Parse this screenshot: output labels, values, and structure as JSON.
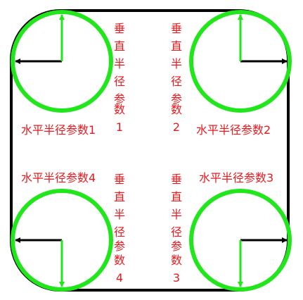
{
  "colors": {
    "border": "#000000",
    "circle": "#22e61c",
    "arrow_horizontal": "#000000",
    "arrow_vertical": "#22e61c",
    "text": "#e8191e"
  },
  "labels": {
    "horizontal": [
      "水平半径参数1",
      "水平半径参数2",
      "水平半径参数3",
      "水平半径参数4"
    ],
    "vertical": [
      {
        "chars": [
          "垂",
          "直",
          "半",
          "径",
          "参",
          "数"
        ],
        "num": "1"
      },
      {
        "chars": [
          "垂",
          "直",
          "半",
          "径",
          "参",
          "数"
        ],
        "num": "2"
      },
      {
        "chars": [
          "垂",
          "直",
          "半",
          "径",
          "参",
          "数"
        ],
        "num": "3"
      },
      {
        "chars": [
          "垂",
          "直",
          "半",
          "径",
          "参",
          "数"
        ],
        "num": "4"
      }
    ]
  }
}
